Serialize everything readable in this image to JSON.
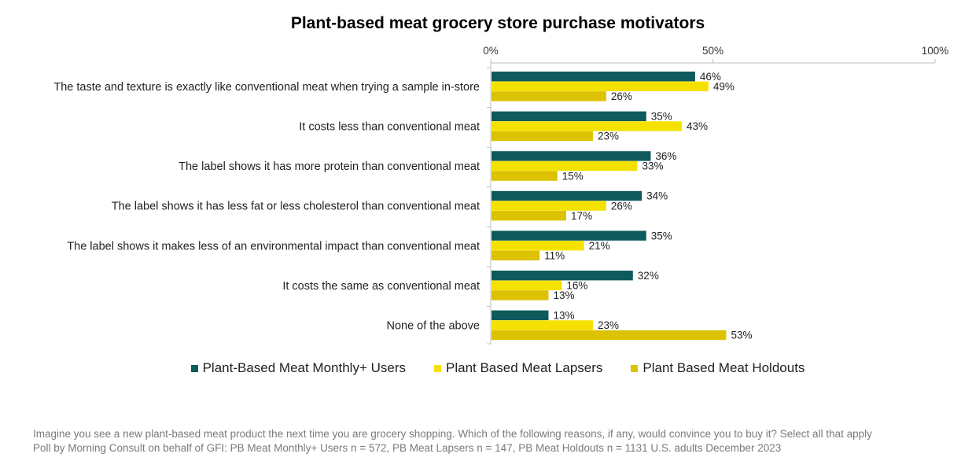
{
  "chart_data": {
    "type": "bar",
    "orientation": "horizontal",
    "title": "Plant-based meat grocery store purchase motivators",
    "categories": [
      "The taste and texture is exactly like conventional meat when trying a sample in-store",
      "It costs less than conventional meat",
      "The label shows it has more protein than conventional meat",
      "The label shows it has less fat or less cholesterol than conventional meat",
      "The label shows it makes less of an environmental impact than conventional meat",
      "It costs the same as conventional meat",
      "None of the above"
    ],
    "series": [
      {
        "name": "Plant-Based Meat Monthly+ Users",
        "color": "#0f5a5c",
        "values": [
          46,
          35,
          36,
          34,
          35,
          32,
          13
        ]
      },
      {
        "name": "Plant Based Meat Lapsers",
        "color": "#f5e100",
        "values": [
          49,
          43,
          33,
          26,
          21,
          16,
          23
        ]
      },
      {
        "name": "Plant Based Meat Holdouts",
        "color": "#dcc200",
        "values": [
          26,
          23,
          15,
          17,
          11,
          13,
          53
        ]
      }
    ],
    "x_ticks": [
      "0%",
      "50%",
      "100%"
    ],
    "xlim": [
      0,
      100
    ],
    "value_suffix": "%",
    "x_axis_position": "top",
    "grid": false,
    "legend_position": "bottom"
  },
  "footnotes": [
    "Imagine you see a new plant-based meat product the next time you are grocery shopping. Which of the following reasons, if any, would convince you to buy it? Select all that apply",
    "Poll by Morning Consult on behalf of GFI: PB Meat Monthly+ Users n = 572, PB Meat Lapsers n = 147, PB Meat Holdouts n = 1131 U.S. adults December 2023"
  ]
}
